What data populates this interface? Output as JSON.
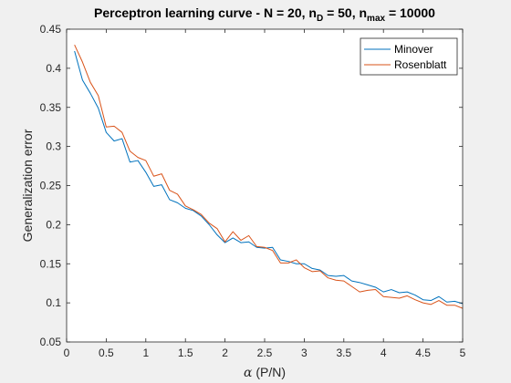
{
  "chart_data": {
    "type": "line",
    "title": "Perceptron learning curve - N = 20, n",
    "title_parts": {
      "prefix": "Perceptron learning curve - N = 20, n",
      "sub1": "D",
      "mid": " = 50, n",
      "sub2": "max",
      "suffix": " = 10000"
    },
    "xlabel_symbol": "α",
    "xlabel_text": " (P/N)",
    "ylabel": "Generalization error",
    "xlim": [
      0,
      5
    ],
    "ylim": [
      0.05,
      0.45
    ],
    "xticks": [
      0,
      0.5,
      1,
      1.5,
      2,
      2.5,
      3,
      3.5,
      4,
      4.5,
      5
    ],
    "xtick_labels": [
      "0",
      "0.5",
      "1",
      "1.5",
      "2",
      "2.5",
      "3",
      "3.5",
      "4",
      "4.5",
      "5"
    ],
    "yticks": [
      0.05,
      0.1,
      0.15,
      0.2,
      0.25,
      0.3,
      0.35,
      0.4,
      0.45
    ],
    "ytick_labels": [
      "0.05",
      "0.1",
      "0.15",
      "0.2",
      "0.25",
      "0.3",
      "0.35",
      "0.4",
      "0.45"
    ],
    "grid": false,
    "legend_position": "top-right",
    "x": [
      0.1,
      0.2,
      0.3,
      0.4,
      0.5,
      0.6,
      0.7,
      0.8,
      0.9,
      1.0,
      1.1,
      1.2,
      1.3,
      1.4,
      1.5,
      1.6,
      1.7,
      1.8,
      1.9,
      2.0,
      2.1,
      2.2,
      2.3,
      2.4,
      2.5,
      2.6,
      2.7,
      2.8,
      2.9,
      3.0,
      3.1,
      3.2,
      3.3,
      3.4,
      3.5,
      3.6,
      3.7,
      3.8,
      3.9,
      4.0,
      4.1,
      4.2,
      4.3,
      4.4,
      4.5,
      4.6,
      4.7,
      4.8,
      4.9,
      5.0
    ],
    "series": [
      {
        "name": "Minover",
        "color": "#0072BD",
        "values": [
          0.422,
          0.385,
          0.368,
          0.349,
          0.318,
          0.307,
          0.31,
          0.28,
          0.282,
          0.267,
          0.249,
          0.251,
          0.232,
          0.228,
          0.221,
          0.218,
          0.211,
          0.2,
          0.187,
          0.177,
          0.183,
          0.177,
          0.178,
          0.171,
          0.17,
          0.171,
          0.155,
          0.153,
          0.15,
          0.15,
          0.144,
          0.142,
          0.135,
          0.134,
          0.135,
          0.128,
          0.126,
          0.123,
          0.12,
          0.114,
          0.117,
          0.113,
          0.114,
          0.11,
          0.104,
          0.103,
          0.108,
          0.101,
          0.102,
          0.099
        ]
      },
      {
        "name": "Rosenblatt",
        "color": "#D95319",
        "values": [
          0.43,
          0.408,
          0.382,
          0.365,
          0.325,
          0.326,
          0.318,
          0.294,
          0.286,
          0.282,
          0.262,
          0.265,
          0.244,
          0.239,
          0.224,
          0.219,
          0.213,
          0.202,
          0.195,
          0.178,
          0.191,
          0.18,
          0.186,
          0.172,
          0.171,
          0.167,
          0.151,
          0.151,
          0.155,
          0.145,
          0.14,
          0.141,
          0.132,
          0.129,
          0.128,
          0.121,
          0.114,
          0.116,
          0.117,
          0.108,
          0.107,
          0.106,
          0.109,
          0.104,
          0.1,
          0.098,
          0.103,
          0.097,
          0.097,
          0.093
        ]
      }
    ]
  }
}
